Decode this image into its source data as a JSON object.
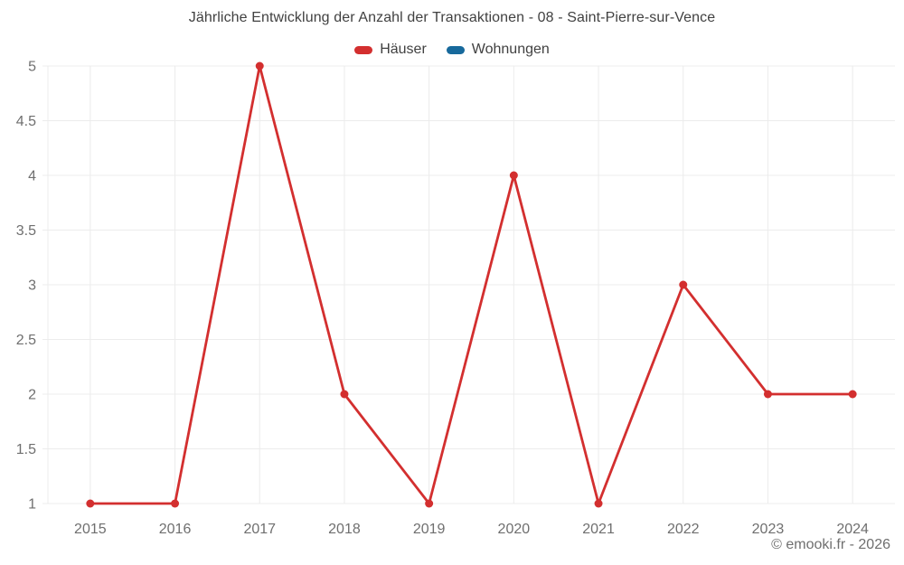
{
  "page": {
    "footer": "© emooki.fr - 2026"
  },
  "chart_data": {
    "type": "line",
    "title": "Jährliche Entwicklung der Anzahl der Transaktionen - 08 - Saint-Pierre-sur-Vence",
    "categories": [
      "2015",
      "2016",
      "2017",
      "2018",
      "2019",
      "2020",
      "2021",
      "2022",
      "2023",
      "2024"
    ],
    "series": [
      {
        "name": "Häuser",
        "color": "#d32f2f",
        "values": [
          1,
          1,
          5,
          2,
          1,
          4,
          1,
          3,
          2,
          2
        ]
      },
      {
        "name": "Wohnungen",
        "color": "#17699c",
        "values": []
      }
    ],
    "xlabel": "",
    "ylabel": "",
    "ylim": [
      1,
      5
    ],
    "ytick_step": 0.5,
    "yticks": [
      "1",
      "1.5",
      "2",
      "2.5",
      "3",
      "3.5",
      "4",
      "4.5",
      "5"
    ],
    "grid": true,
    "grid_color": "#ececec",
    "legend_position": "top"
  }
}
